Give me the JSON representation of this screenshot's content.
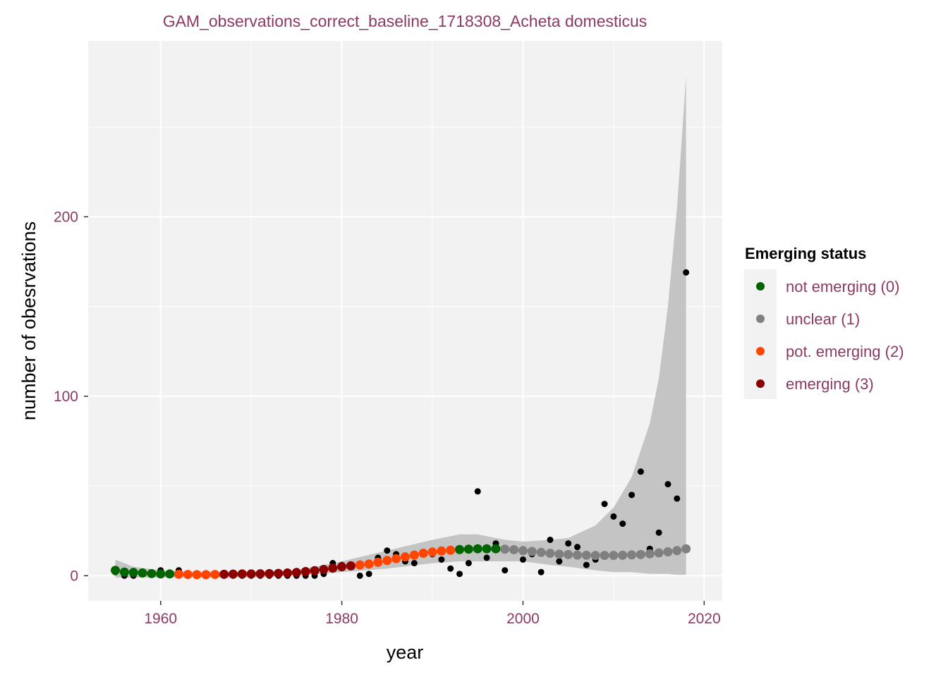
{
  "chart_data": {
    "type": "scatter",
    "title": "GAM_observations_correct_baseline_1718308_Acheta domesticus",
    "xlabel": "year",
    "ylabel": "number of obesrvations",
    "xlim": [
      1952,
      2022
    ],
    "ylim": [
      -14,
      298
    ],
    "x_ticks": [
      1960,
      1980,
      2000,
      2020
    ],
    "y_ticks": [
      0,
      100,
      200
    ],
    "grid": true,
    "background": "#F2F2F2",
    "observations": {
      "color": "#000000",
      "x": [
        1955,
        1956,
        1957,
        1958,
        1959,
        1960,
        1961,
        1962,
        1963,
        1964,
        1965,
        1966,
        1967,
        1968,
        1969,
        1970,
        1971,
        1972,
        1973,
        1974,
        1975,
        1976,
        1977,
        1978,
        1979,
        1980,
        1981,
        1982,
        1983,
        1984,
        1985,
        1986,
        1987,
        1988,
        1989,
        1990,
        1991,
        1992,
        1993,
        1994,
        1995,
        1996,
        1997,
        1998,
        1999,
        2000,
        2001,
        2002,
        2003,
        2004,
        2005,
        2006,
        2007,
        2008,
        2009,
        2010,
        2011,
        2012,
        2013,
        2014,
        2015,
        2016,
        2017,
        2018
      ],
      "y": [
        2,
        0,
        0,
        1,
        1,
        3,
        1,
        3,
        0,
        0,
        0,
        0,
        0,
        0,
        0,
        0,
        0,
        0,
        0,
        0,
        0,
        0,
        0,
        1,
        7,
        6,
        5,
        0,
        1,
        10,
        14,
        12,
        8,
        7,
        13,
        12,
        9,
        4,
        1,
        7,
        47,
        10,
        18,
        3,
        14,
        9,
        12,
        2,
        20,
        8,
        18,
        16,
        6,
        9,
        40,
        33,
        29,
        45,
        58,
        15,
        24,
        51,
        43,
        169
      ]
    },
    "fit": {
      "x": [
        1955,
        1956,
        1957,
        1958,
        1959,
        1960,
        1961,
        1962,
        1963,
        1964,
        1965,
        1966,
        1967,
        1968,
        1969,
        1970,
        1971,
        1972,
        1973,
        1974,
        1975,
        1976,
        1977,
        1978,
        1979,
        1980,
        1981,
        1982,
        1983,
        1984,
        1985,
        1986,
        1987,
        1988,
        1989,
        1990,
        1991,
        1992,
        1993,
        1994,
        1995,
        1996,
        1997,
        1998,
        1999,
        2000,
        2001,
        2002,
        2003,
        2004,
        2005,
        2006,
        2007,
        2008,
        2009,
        2010,
        2011,
        2012,
        2013,
        2014,
        2015,
        2016,
        2017,
        2018
      ],
      "y": [
        3,
        2,
        1.8,
        1.5,
        1.2,
        1,
        1,
        0.8,
        0.7,
        0.6,
        0.6,
        0.7,
        0.8,
        0.9,
        1,
        1,
        1.1,
        1.2,
        1.3,
        1.5,
        1.8,
        2.3,
        2.8,
        3.5,
        4.2,
        5,
        5.5,
        6,
        6.5,
        7.5,
        8.5,
        9.5,
        10.5,
        11.5,
        12.5,
        13.2,
        13.8,
        14.2,
        14.6,
        14.8,
        15,
        15,
        15,
        14.8,
        14.5,
        14,
        13.5,
        13,
        12.5,
        12,
        11.8,
        11.5,
        11.4,
        11.3,
        11.3,
        11.3,
        11.4,
        11.6,
        11.8,
        12.2,
        12.7,
        13.3,
        14,
        15
      ],
      "status": [
        0,
        0,
        0,
        0,
        0,
        0,
        0,
        2,
        2,
        2,
        2,
        2,
        3,
        3,
        3,
        3,
        3,
        3,
        3,
        3,
        3,
        3,
        3,
        3,
        3,
        3,
        3,
        2,
        2,
        2,
        2,
        2,
        2,
        2,
        2,
        2,
        2,
        2,
        0,
        0,
        0,
        0,
        0,
        1,
        1,
        1,
        1,
        1,
        1,
        1,
        1,
        1,
        1,
        1,
        1,
        1,
        1,
        1,
        1,
        1,
        1,
        1,
        1,
        1
      ]
    },
    "confidence_band": {
      "color": "#C4C4C4",
      "x": [
        1955,
        1957,
        1960,
        1965,
        1970,
        1975,
        1980,
        1985,
        1990,
        1993,
        1995,
        1998,
        2000,
        2003,
        2005,
        2008,
        2010,
        2012,
        2014,
        2015,
        2016,
        2017,
        2018
      ],
      "upper": [
        9,
        5,
        3,
        2,
        2,
        3,
        8,
        14,
        20,
        23,
        23,
        20,
        19,
        20,
        21,
        28,
        38,
        55,
        85,
        110,
        150,
        205,
        278
      ],
      "lower": [
        -1,
        -1,
        -1,
        -1,
        -1,
        0,
        2,
        4,
        7,
        8,
        8,
        8,
        8,
        6,
        5,
        3,
        2,
        2,
        1,
        1,
        1,
        0.5,
        0.5
      ]
    }
  },
  "legend": {
    "title": "Emerging status",
    "placement": "right",
    "items": [
      {
        "label": "not emerging (0)",
        "color": "#006400"
      },
      {
        "label": "unclear (1)",
        "color": "#808080"
      },
      {
        "label": "pot. emerging (2)",
        "color": "#FF4500"
      },
      {
        "label": "emerging (3)",
        "color": "#8B0000"
      }
    ]
  }
}
